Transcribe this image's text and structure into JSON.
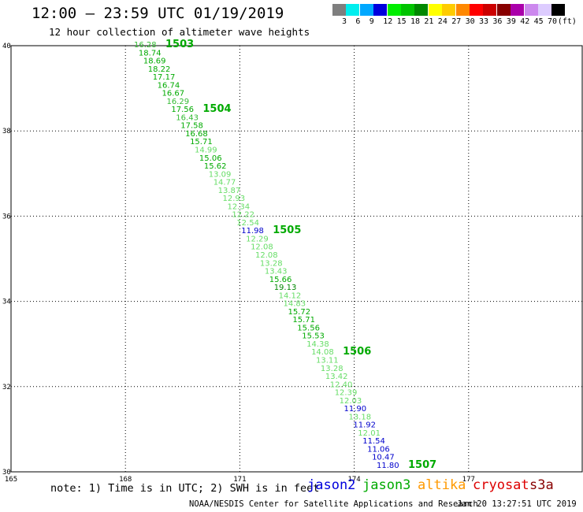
{
  "header": {
    "title": "12:00 – 23:59 UTC 01/19/2019",
    "subtitle": "12 hour collection of altimeter wave heights"
  },
  "color_scale": {
    "unit_label": "(ft)",
    "bins": [
      {
        "label": "3",
        "color": "#7f7f7f"
      },
      {
        "label": "6",
        "color": "#00eeee"
      },
      {
        "label": "9",
        "color": "#00a8ff"
      },
      {
        "label": "12",
        "color": "#0000dd"
      },
      {
        "label": "15",
        "color": "#00ee00"
      },
      {
        "label": "18",
        "color": "#00c400"
      },
      {
        "label": "21",
        "color": "#008800"
      },
      {
        "label": "24",
        "color": "#ffff00"
      },
      {
        "label": "27",
        "color": "#ffcc00"
      },
      {
        "label": "30",
        "color": "#ff8800"
      },
      {
        "label": "33",
        "color": "#ff0000"
      },
      {
        "label": "36",
        "color": "#cc0000"
      },
      {
        "label": "39",
        "color": "#880000"
      },
      {
        "label": "42",
        "color": "#aa00aa"
      },
      {
        "label": "45",
        "color": "#cc88ee"
      },
      {
        "label": "70",
        "color": "#ddccff"
      },
      {
        "label": "",
        "color": "#000000"
      }
    ]
  },
  "map": {
    "lon_ticks": [
      "165",
      "168",
      "171",
      "174",
      "177"
    ],
    "lat_ticks": [
      "30",
      "32",
      "34",
      "36",
      "38",
      "40"
    ],
    "lon_range": [
      165,
      180
    ],
    "lat_range": [
      30,
      40
    ]
  },
  "track": {
    "color": "#00aa00",
    "values": [
      {
        "v": "16.28",
        "c": "#33bb33"
      },
      {
        "v": "18.74",
        "c": "#00aa00"
      },
      {
        "v": "18.69",
        "c": "#00aa00"
      },
      {
        "v": "18.22",
        "c": "#00aa00"
      },
      {
        "v": "17.17",
        "c": "#00aa00"
      },
      {
        "v": "16.74",
        "c": "#00aa00"
      },
      {
        "v": "16.67",
        "c": "#00aa00"
      },
      {
        "v": "16.29",
        "c": "#33bb33"
      },
      {
        "v": "17.56",
        "c": "#00aa00"
      },
      {
        "v": "16.43",
        "c": "#33bb33"
      },
      {
        "v": "17.58",
        "c": "#00aa00"
      },
      {
        "v": "16.68",
        "c": "#00aa00"
      },
      {
        "v": "15.71",
        "c": "#00aa00"
      },
      {
        "v": "14.99",
        "c": "#66dd66"
      },
      {
        "v": "15.06",
        "c": "#00aa00"
      },
      {
        "v": "15.62",
        "c": "#00aa00"
      },
      {
        "v": "13.09",
        "c": "#66dd66"
      },
      {
        "v": "14.77",
        "c": "#66dd66"
      },
      {
        "v": "13.87",
        "c": "#66dd66"
      },
      {
        "v": "12.93",
        "c": "#66dd66"
      },
      {
        "v": "12.34",
        "c": "#66dd66"
      },
      {
        "v": "12.22",
        "c": "#66dd66"
      },
      {
        "v": "12.54",
        "c": "#66dd66"
      },
      {
        "v": "11.98",
        "c": "#0000cc"
      },
      {
        "v": "12.29",
        "c": "#66dd66"
      },
      {
        "v": "12.08",
        "c": "#66dd66"
      },
      {
        "v": "12.08",
        "c": "#66dd66"
      },
      {
        "v": "13.28",
        "c": "#66dd66"
      },
      {
        "v": "13.43",
        "c": "#66dd66"
      },
      {
        "v": "15.66",
        "c": "#00aa00"
      },
      {
        "v": "19.13",
        "c": "#008800"
      },
      {
        "v": "14.12",
        "c": "#66dd66"
      },
      {
        "v": "14.83",
        "c": "#66dd66"
      },
      {
        "v": "15.72",
        "c": "#00aa00"
      },
      {
        "v": "15.71",
        "c": "#00aa00"
      },
      {
        "v": "15.56",
        "c": "#00aa00"
      },
      {
        "v": "15.53",
        "c": "#00aa00"
      },
      {
        "v": "14.38",
        "c": "#66dd66"
      },
      {
        "v": "14.08",
        "c": "#66dd66"
      },
      {
        "v": "13.11",
        "c": "#66dd66"
      },
      {
        "v": "13.28",
        "c": "#66dd66"
      },
      {
        "v": "13.42",
        "c": "#66dd66"
      },
      {
        "v": "12.40",
        "c": "#66dd66"
      },
      {
        "v": "12.39",
        "c": "#66dd66"
      },
      {
        "v": "12.03",
        "c": "#66dd66"
      },
      {
        "v": "11.90",
        "c": "#0000cc"
      },
      {
        "v": "13.18",
        "c": "#66dd66"
      },
      {
        "v": "11.92",
        "c": "#0000cc"
      },
      {
        "v": "12.01",
        "c": "#66dd66"
      },
      {
        "v": "11.54",
        "c": "#0000cc"
      },
      {
        "v": "11.06",
        "c": "#0000cc"
      },
      {
        "v": "10.47",
        "c": "#0000cc"
      },
      {
        "v": "11.80",
        "c": "#0000cc"
      }
    ],
    "time_labels": [
      {
        "label": "1503",
        "index": 0
      },
      {
        "label": "1504",
        "index": 8
      },
      {
        "label": "1505",
        "index": 23
      },
      {
        "label": "1506",
        "index": 38
      },
      {
        "label": "1507",
        "index": 52
      }
    ]
  },
  "footer": {
    "note": "note: 1) Time is in UTC; 2) SWH is in feet",
    "satellites": [
      {
        "name": "jason2",
        "color": "#0000dd"
      },
      {
        "name": "jason3",
        "color": "#00aa00"
      },
      {
        "name": "altika",
        "color": "#ff9900"
      },
      {
        "name": "cryosat",
        "color": "#dd0000"
      },
      {
        "name": "s3a",
        "color": "#880000"
      }
    ],
    "credit": "NOAA/NESDIS Center for Satellite Applications and Research",
    "timestamp": "Jan 20 13:27:51 UTC 2019"
  }
}
